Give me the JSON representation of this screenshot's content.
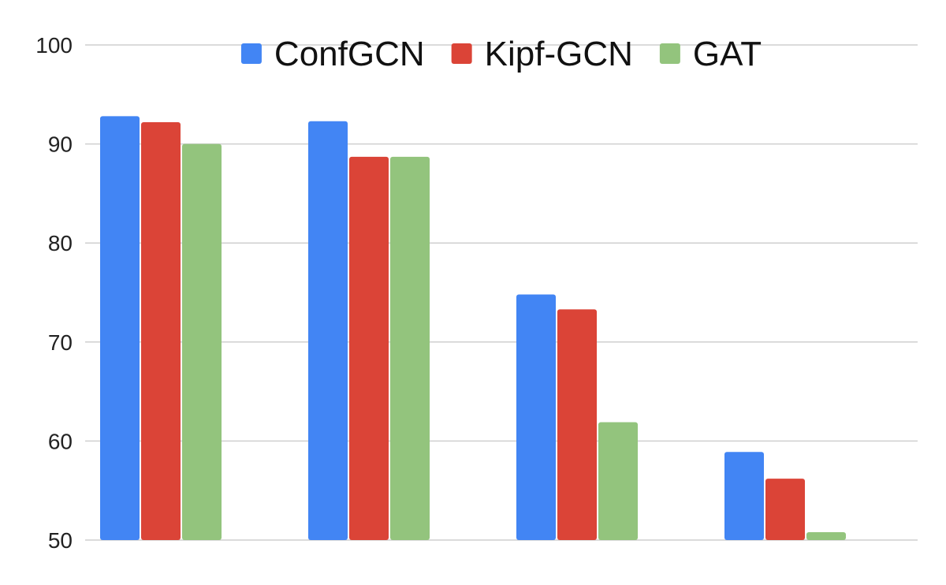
{
  "chart_data": {
    "type": "bar",
    "categories": [
      "",
      "",
      "",
      ""
    ],
    "series": [
      {
        "name": "ConfGCN",
        "color": "#4285f4",
        "values": [
          92.8,
          92.3,
          74.8,
          58.9
        ]
      },
      {
        "name": "Kipf-GCN",
        "color": "#db4437",
        "values": [
          92.2,
          88.7,
          73.3,
          56.2
        ]
      },
      {
        "name": "GAT",
        "color": "#93c47d",
        "values": [
          90.0,
          88.7,
          61.9,
          50.8
        ]
      }
    ],
    "ylim": [
      50,
      100
    ],
    "yticks": [
      50,
      60,
      70,
      80,
      90,
      100
    ],
    "xlabel": "",
    "ylabel": "",
    "title": "",
    "grid": true,
    "legend_position": "top-center"
  }
}
